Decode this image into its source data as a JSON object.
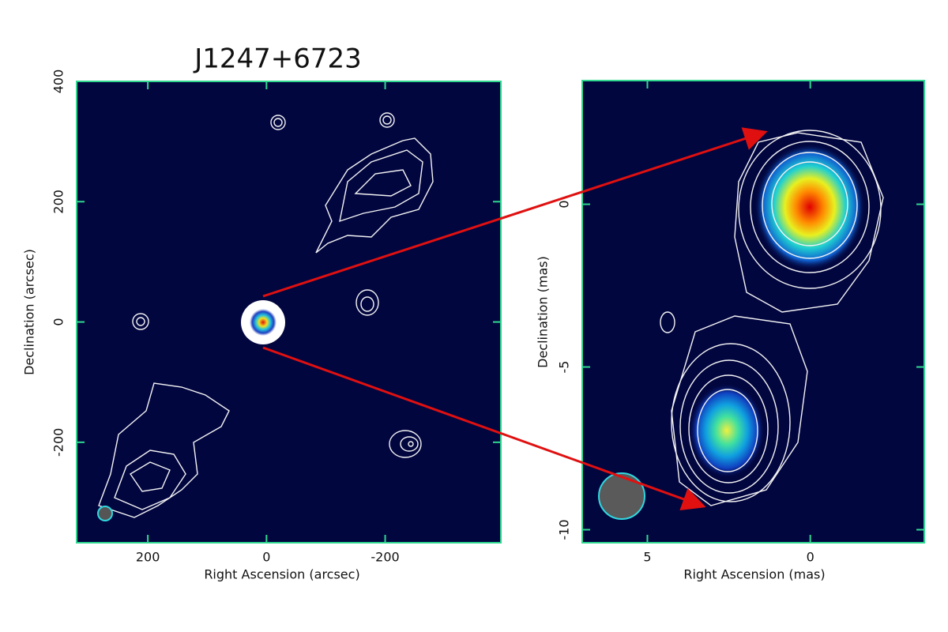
{
  "chart_data": [
    {
      "type": "image",
      "title": "J1247+6723",
      "xlabel": "Right Ascension (arcsec)",
      "ylabel": "Declination (arcsec)",
      "xlim": [
        320,
        -395
      ],
      "ylim": [
        -367,
        400
      ],
      "xticks": [
        200,
        0,
        -200
      ],
      "yticks": [
        400,
        200,
        0,
        -200
      ]
    },
    {
      "type": "image",
      "xlabel": "Right Ascension (mas)",
      "ylabel": "Declination (mas)",
      "xlim": [
        7,
        -3.5
      ],
      "ylim": [
        -10.4,
        3.8
      ],
      "xticks": [
        5,
        0
      ],
      "yticks": [
        0,
        -5,
        -10
      ]
    }
  ]
}
